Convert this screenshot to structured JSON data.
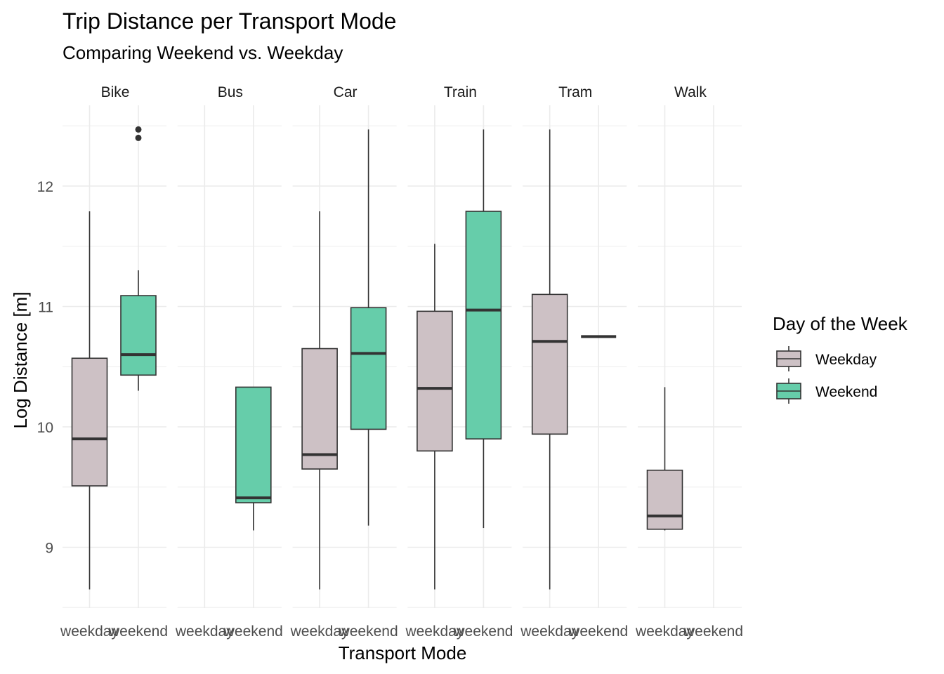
{
  "chart_data": {
    "type": "boxplot",
    "title": "Trip Distance per Transport Mode",
    "subtitle": "Comparing Weekend vs. Weekday",
    "xlabel": "Transport Mode",
    "ylabel": "Log Distance [m]",
    "ylim": [
      8.5,
      12.75
    ],
    "yticks": [
      "9",
      "10",
      "11",
      "12"
    ],
    "facets": [
      "Bike",
      "Bus",
      "Car",
      "Train",
      "Tram",
      "Walk"
    ],
    "categories": [
      "weekday",
      "weekend"
    ],
    "legend": {
      "title": "Day of the Week",
      "position": "right",
      "entries": [
        {
          "label": "Weekday",
          "color": "#cdc1c5"
        },
        {
          "label": "Weekend",
          "color": "#66cdaa"
        }
      ]
    },
    "grid": true,
    "boxes": [
      {
        "facet": "Bike",
        "day": "weekday",
        "min": 8.65,
        "q1": 9.51,
        "median": 9.9,
        "q3": 10.57,
        "max": 11.79,
        "outliers": []
      },
      {
        "facet": "Bike",
        "day": "weekend",
        "min": 10.3,
        "q1": 10.43,
        "median": 10.6,
        "q3": 11.09,
        "max": 11.3,
        "outliers": [
          12.4,
          12.47
        ]
      },
      {
        "facet": "Bus",
        "day": "weekend",
        "min": 9.14,
        "q1": 9.37,
        "median": 9.41,
        "q3": 10.33,
        "max": 10.33,
        "outliers": []
      },
      {
        "facet": "Car",
        "day": "weekday",
        "min": 8.65,
        "q1": 9.65,
        "median": 9.77,
        "q3": 10.65,
        "max": 11.79,
        "outliers": []
      },
      {
        "facet": "Car",
        "day": "weekend",
        "min": 9.18,
        "q1": 9.98,
        "median": 10.61,
        "q3": 10.99,
        "max": 12.47,
        "outliers": []
      },
      {
        "facet": "Train",
        "day": "weekday",
        "min": 8.65,
        "q1": 9.8,
        "median": 10.32,
        "q3": 10.96,
        "max": 11.52,
        "outliers": []
      },
      {
        "facet": "Train",
        "day": "weekend",
        "min": 9.16,
        "q1": 9.9,
        "median": 10.97,
        "q3": 11.79,
        "max": 12.47,
        "outliers": []
      },
      {
        "facet": "Tram",
        "day": "weekday",
        "min": 8.65,
        "q1": 9.94,
        "median": 10.71,
        "q3": 11.1,
        "max": 12.47,
        "outliers": []
      },
      {
        "facet": "Tram",
        "day": "weekend",
        "min": 10.75,
        "q1": 10.75,
        "median": 10.75,
        "q3": 10.75,
        "max": 10.75,
        "outliers": []
      },
      {
        "facet": "Walk",
        "day": "weekday",
        "min": 9.14,
        "q1": 9.15,
        "median": 9.26,
        "q3": 9.64,
        "max": 10.33,
        "outliers": []
      }
    ]
  }
}
